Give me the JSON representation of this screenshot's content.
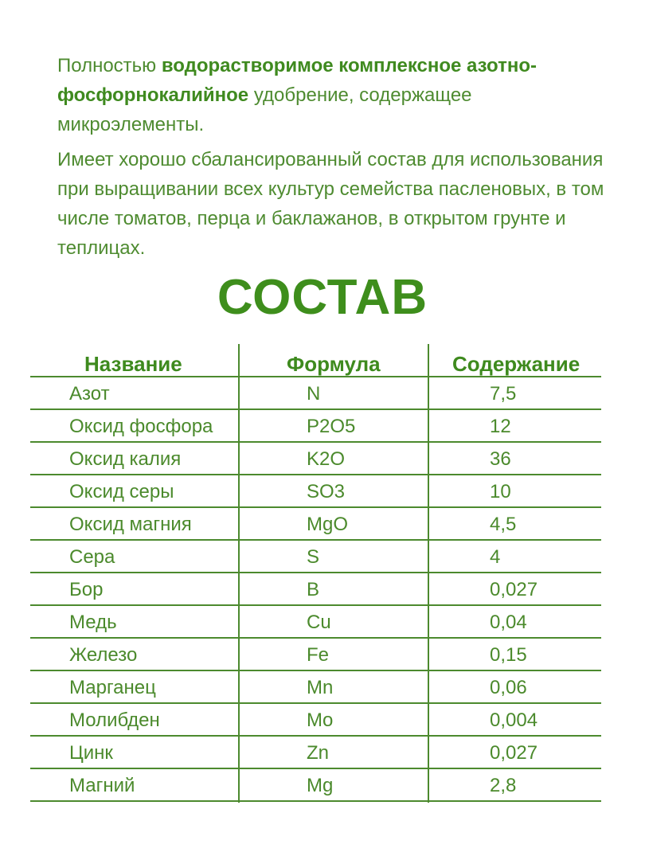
{
  "intro": {
    "paragraph1": [
      {
        "text": "Полностью ",
        "bold": false
      },
      {
        "text": "водорастворимое комплексное азотно-фосфорнокалийное",
        "bold": true
      },
      {
        "text": " удобрение, содержащее микроэлементы.",
        "bold": false
      }
    ],
    "paragraph2": "Имеет хорошо сбалансированный состав для использования при выращивании всех культур семейства пасленовых, в том числе томатов, перца и баклажанов, в открытом грунте и теплицах."
  },
  "title": "СОСТАВ",
  "table": {
    "headers": [
      "Название",
      "Формула",
      "Содержание"
    ],
    "rows": [
      [
        "Азот",
        "N",
        "7,5"
      ],
      [
        "Оксид фосфора",
        "P2O5",
        "12"
      ],
      [
        "Оксид калия",
        "K2O",
        "36"
      ],
      [
        "Оксид серы",
        "SO3",
        "10"
      ],
      [
        "Оксид магния",
        "MgO",
        "4,5"
      ],
      [
        "Сера",
        "S",
        "4"
      ],
      [
        "Бор",
        "B",
        "0,027"
      ],
      [
        "Медь",
        "Cu",
        "0,04"
      ],
      [
        "Железо",
        "Fe",
        "0,15"
      ],
      [
        "Марганец",
        "Mn",
        "0,06"
      ],
      [
        "Молибден",
        "Mo",
        "0,004"
      ],
      [
        "Цинк",
        "Zn",
        "0,027"
      ],
      [
        "Магний",
        "Mg",
        "2,8"
      ]
    ]
  },
  "colors": {
    "text": "#4b8a2c",
    "accent": "#3e8e1c",
    "lines": "#4c8a2e"
  }
}
